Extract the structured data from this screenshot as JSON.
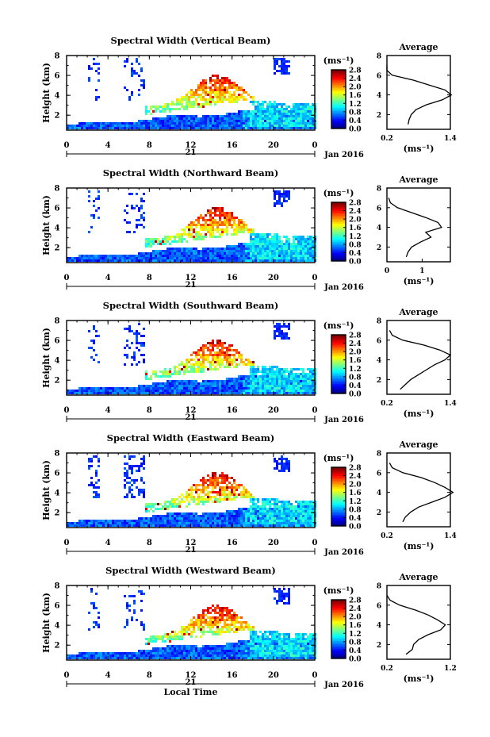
{
  "figure": {
    "x_axis_label": "Local Time",
    "date_label": "Jan 2016",
    "day_label": "21",
    "height_axis_label": "Height (km)",
    "colorbar_unit": "(ms⁻¹)",
    "avg_title": "Average",
    "avg_unit": "(ms⁻¹)"
  },
  "chart_data": [
    {
      "type": "heatmap",
      "title": "Spectral Width (Vertical Beam)",
      "xlabel": "",
      "ylabel": "Height (km)",
      "xlim": [
        0,
        24
      ],
      "ylim": [
        0.5,
        8
      ],
      "xticks": [
        "0",
        "4",
        "8",
        "12",
        "16",
        "20",
        "0"
      ],
      "yticks": [
        "2",
        "4",
        "6",
        "8"
      ],
      "colorbar": {
        "ticks": [
          "0.0",
          "0.4",
          "0.8",
          "1.2",
          "1.6",
          "2.0",
          "2.4",
          "2.8"
        ],
        "range": [
          0,
          2.8
        ]
      },
      "profile": {
        "title": "Average",
        "xticks": [
          "0.2",
          "1.4"
        ],
        "xlim": [
          0.2,
          1.4
        ],
        "yticks": [
          "2",
          "4",
          "6",
          "8"
        ],
        "heights": [
          1.0,
          1.5,
          2.0,
          2.5,
          3.0,
          3.5,
          4.0,
          4.5,
          5.0,
          5.5,
          6.0,
          6.5,
          7.0
        ],
        "values": [
          0.6,
          0.62,
          0.66,
          0.75,
          0.95,
          1.25,
          1.42,
          1.3,
          1.0,
          0.7,
          0.3,
          0.2,
          0.2
        ]
      }
    },
    {
      "type": "heatmap",
      "title": "Spectral Width (Northward Beam)",
      "xlabel": "",
      "ylabel": "Height (km)",
      "xlim": [
        0,
        24
      ],
      "ylim": [
        0.5,
        8
      ],
      "xticks": [
        "0",
        "4",
        "8",
        "12",
        "16",
        "20",
        "0"
      ],
      "yticks": [
        "2",
        "4",
        "6",
        "8"
      ],
      "colorbar": {
        "ticks": [
          "0.0",
          "0.4",
          "0.8",
          "1.2",
          "1.6",
          "2.0",
          "2.4",
          "2.8"
        ],
        "range": [
          0,
          2.8
        ]
      },
      "profile": {
        "title": "Average",
        "xticks": [
          "0",
          "1"
        ],
        "xlim": [
          0,
          1.8
        ],
        "yticks": [
          "2",
          "4",
          "6",
          "8"
        ],
        "heights": [
          1.0,
          1.5,
          2.0,
          2.5,
          3.0,
          3.5,
          4.0,
          4.5,
          5.0,
          5.5,
          6.0,
          6.5,
          7.0
        ],
        "values": [
          0.55,
          0.6,
          0.7,
          0.95,
          1.25,
          1.1,
          1.55,
          1.45,
          1.1,
          0.7,
          0.3,
          0.1,
          0.05
        ]
      }
    },
    {
      "type": "heatmap",
      "title": "Spectral Width (Southward Beam)",
      "xlabel": "",
      "ylabel": "Height (km)",
      "xlim": [
        0,
        24
      ],
      "ylim": [
        0.5,
        8
      ],
      "xticks": [
        "0",
        "4",
        "8",
        "12",
        "16",
        "20",
        "0"
      ],
      "yticks": [
        "2",
        "4",
        "6",
        "8"
      ],
      "colorbar": {
        "ticks": [
          "0.0",
          "0.4",
          "0.8",
          "1.2",
          "1.6",
          "2.0",
          "2.4",
          "2.8"
        ],
        "range": [
          0,
          2.8
        ]
      },
      "profile": {
        "title": "Average",
        "xticks": [
          "0.2",
          "1.4"
        ],
        "xlim": [
          0.2,
          1.4
        ],
        "yticks": [
          "2",
          "4",
          "6",
          "8"
        ],
        "heights": [
          1.0,
          1.5,
          2.0,
          2.5,
          3.0,
          3.5,
          4.0,
          4.5,
          5.0,
          5.5,
          6.0,
          6.5,
          7.0
        ],
        "values": [
          0.45,
          0.55,
          0.65,
          0.8,
          0.95,
          1.1,
          1.3,
          1.4,
          1.2,
          0.9,
          0.5,
          0.3,
          0.25
        ]
      }
    },
    {
      "type": "heatmap",
      "title": "Spectral Width (Eastward Beam)",
      "xlabel": "",
      "ylabel": "Height (km)",
      "xlim": [
        0,
        24
      ],
      "ylim": [
        0.5,
        8
      ],
      "xticks": [
        "0",
        "4",
        "8",
        "12",
        "16",
        "20",
        "0"
      ],
      "yticks": [
        "2",
        "4",
        "6",
        "8"
      ],
      "colorbar": {
        "ticks": [
          "0.0",
          "0.4",
          "0.8",
          "1.2",
          "1.6",
          "2.0",
          "2.4",
          "2.8"
        ],
        "range": [
          0,
          2.8
        ]
      },
      "profile": {
        "title": "Average",
        "xticks": [
          "0.2",
          "1.4"
        ],
        "xlim": [
          0.2,
          1.4
        ],
        "yticks": [
          "2",
          "4",
          "6",
          "8"
        ],
        "heights": [
          1.0,
          1.5,
          2.0,
          2.5,
          3.0,
          3.5,
          4.0,
          4.5,
          5.0,
          5.5,
          6.0,
          6.5,
          7.0
        ],
        "values": [
          0.5,
          0.55,
          0.65,
          0.8,
          1.05,
          1.3,
          1.45,
          1.3,
          1.1,
          0.85,
          0.5,
          0.3,
          0.25
        ]
      }
    },
    {
      "type": "heatmap",
      "title": "Spectral Width (Westward Beam)",
      "xlabel": "Local Time",
      "ylabel": "Height (km)",
      "xlim": [
        0,
        24
      ],
      "ylim": [
        0.5,
        8
      ],
      "xticks": [
        "0",
        "4",
        "8",
        "12",
        "16",
        "20",
        "0"
      ],
      "yticks": [
        "2",
        "4",
        "6",
        "8"
      ],
      "colorbar": {
        "ticks": [
          "0.0",
          "0.4",
          "0.8",
          "1.2",
          "1.6",
          "2.0",
          "2.4",
          "2.8"
        ],
        "range": [
          0,
          2.8
        ]
      },
      "profile": {
        "title": "Average",
        "xticks": [
          "0.2",
          "1.2"
        ],
        "xlim": [
          0.2,
          1.2
        ],
        "yticks": [
          "2",
          "4",
          "6",
          "8"
        ],
        "heights": [
          1.0,
          1.5,
          2.0,
          2.5,
          3.0,
          3.5,
          4.0,
          4.5,
          5.0,
          5.5,
          6.0,
          6.5,
          7.0
        ],
        "values": [
          0.5,
          0.6,
          0.62,
          0.7,
          0.85,
          1.05,
          1.12,
          1.0,
          0.85,
          0.65,
          0.4,
          0.25,
          0.2
        ]
      }
    }
  ]
}
